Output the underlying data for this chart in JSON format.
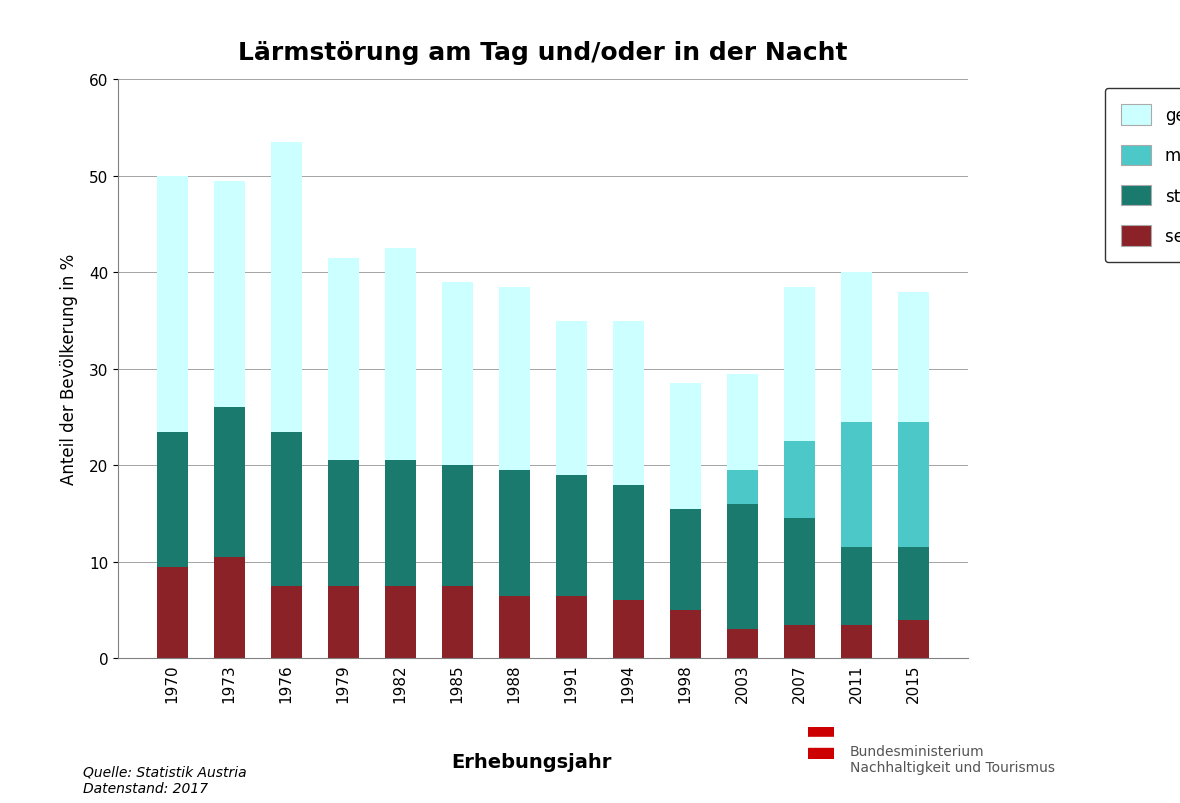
{
  "title": "Lärmstörung am Tag und/oder in der Nacht",
  "ylabel": "Anteil der Bevölkerung in %",
  "xlabel": "Erhebungsjahr",
  "years": [
    "1970",
    "1973",
    "1976",
    "1979",
    "1982",
    "1985",
    "1988",
    "1991",
    "1994",
    "1998",
    "2003",
    "2007",
    "2011",
    "2015"
  ],
  "sehr_stark": [
    9.5,
    10.5,
    7.5,
    7.5,
    7.5,
    7.5,
    6.5,
    6.5,
    6.0,
    5.0,
    3.0,
    3.5,
    3.5,
    4.0
  ],
  "stark": [
    14.0,
    15.5,
    16.0,
    13.0,
    13.0,
    12.5,
    13.0,
    12.5,
    12.0,
    10.5,
    13.0,
    11.0,
    8.0,
    7.5
  ],
  "mittel": [
    0.0,
    0.0,
    0.0,
    0.0,
    0.0,
    0.0,
    0.0,
    0.0,
    0.0,
    0.0,
    3.5,
    8.0,
    13.0,
    13.0
  ],
  "gering": [
    26.5,
    23.5,
    30.0,
    21.0,
    22.0,
    19.0,
    19.0,
    16.0,
    17.0,
    13.0,
    10.0,
    16.0,
    15.5,
    13.5
  ],
  "color_sehr_stark": "#8B2228",
  "color_stark": "#1A7A6E",
  "color_mittel": "#4DC8C8",
  "color_gering": "#CCFFFF",
  "ylim": [
    0,
    60
  ],
  "yticks": [
    0,
    10,
    20,
    30,
    40,
    50,
    60
  ],
  "source_text": "Quelle: Statistik Austria\nDatenstand: 2017",
  "xlabel_label": "Erhebungsjahr",
  "bministerium_text": "Bundesministerium\nNachhaltigkeit und Tourismus",
  "background_color": "#FFFFFF",
  "bar_width": 0.55
}
